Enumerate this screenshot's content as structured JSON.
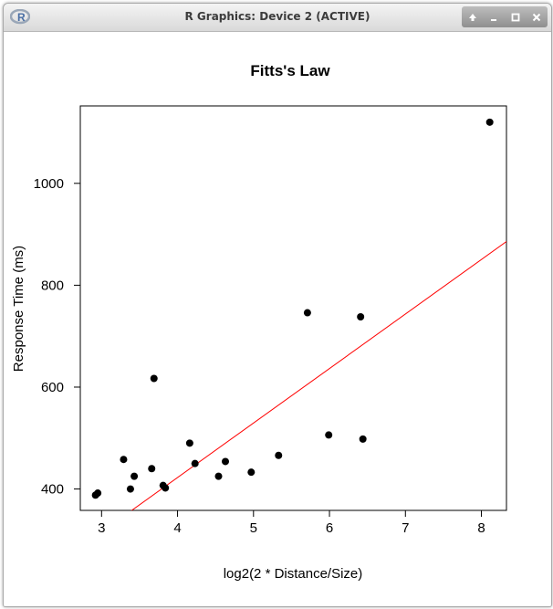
{
  "window": {
    "title": "R Graphics: Device 2 (ACTIVE)",
    "buttons": [
      "up-icon",
      "minimize-icon",
      "maximize-icon",
      "close-icon"
    ]
  },
  "colors": {
    "points": "#000000",
    "fit_line": "#ff0000",
    "axes": "#000000"
  },
  "chart_data": {
    "type": "scatter",
    "title": "Fitts's Law",
    "xlabel": "log2(2 * Distance/Size)",
    "ylabel": "Response Time (ms)",
    "xlim": [
      2.72,
      8.33
    ],
    "ylim": [
      358,
      1152
    ],
    "xticks": [
      3,
      4,
      5,
      6,
      7,
      8
    ],
    "yticks": [
      400,
      600,
      800,
      1000
    ],
    "grid": false,
    "points": [
      {
        "x": 2.92,
        "y": 388
      },
      {
        "x": 2.95,
        "y": 392
      },
      {
        "x": 3.29,
        "y": 458
      },
      {
        "x": 3.38,
        "y": 400
      },
      {
        "x": 3.43,
        "y": 425
      },
      {
        "x": 3.66,
        "y": 440
      },
      {
        "x": 3.69,
        "y": 617
      },
      {
        "x": 3.81,
        "y": 407
      },
      {
        "x": 3.84,
        "y": 402
      },
      {
        "x": 4.16,
        "y": 490
      },
      {
        "x": 4.23,
        "y": 450
      },
      {
        "x": 4.54,
        "y": 425
      },
      {
        "x": 4.63,
        "y": 454
      },
      {
        "x": 4.97,
        "y": 433
      },
      {
        "x": 5.33,
        "y": 466
      },
      {
        "x": 5.71,
        "y": 746
      },
      {
        "x": 5.99,
        "y": 506
      },
      {
        "x": 6.41,
        "y": 738
      },
      {
        "x": 6.44,
        "y": 498
      },
      {
        "x": 8.11,
        "y": 1120
      }
    ],
    "fit_line": {
      "intercept": -5.5,
      "slope": 107.0
    }
  }
}
